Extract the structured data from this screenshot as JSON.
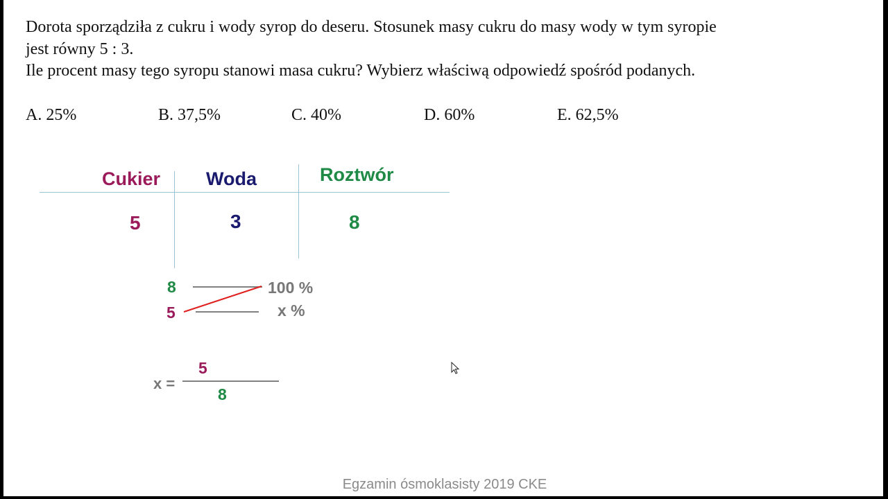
{
  "question": {
    "line1": "Dorota sporządziła z cukru i wody syrop do deseru. Stosunek masy cukru do masy wody w tym syropie",
    "line2": "jest równy 5 : 3.",
    "line3": "Ile procent masy tego syropu stanowi masa cukru? Wybierz właściwą odpowiedź spośród podanych."
  },
  "options": [
    "A. 25%",
    "B. 37,5%",
    "C. 40%",
    "D. 60%",
    "E. 62,5%"
  ],
  "table": {
    "headers": [
      "Cukier",
      "Woda",
      "Roztwór"
    ],
    "values": [
      "5",
      "3",
      "8"
    ]
  },
  "proportion": {
    "row1_left": "8",
    "row1_right": "100 %",
    "row2_left": "5",
    "row2_right": "x %"
  },
  "fraction": {
    "label": "x =",
    "numerator": "5",
    "denominator": "8"
  },
  "footer": "Egzamin ósmoklasisty 2019 CKE",
  "colors": {
    "cukier": "#9b1b5a",
    "woda": "#1a1a6e",
    "roztwor": "#1f8a45",
    "cross_line": "#e02020",
    "divider": "#9cc3d8"
  }
}
